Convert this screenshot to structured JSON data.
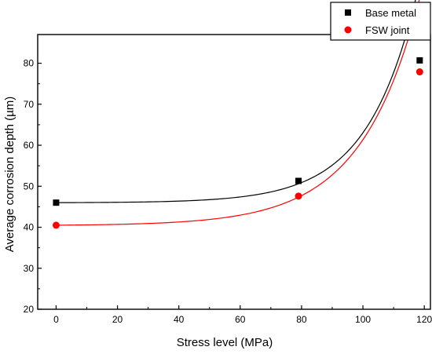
{
  "chart_data": {
    "type": "scatter",
    "xlabel": "Stress level (MPa)",
    "ylabel": "Average corrosion depth (µm)",
    "xlim": [
      -6,
      122
    ],
    "ylim": [
      20,
      87
    ],
    "xticks": [
      0,
      20,
      40,
      60,
      80,
      100,
      120
    ],
    "yticks": [
      20,
      30,
      40,
      50,
      60,
      70,
      80
    ],
    "grid": false,
    "legend_position": "top-right",
    "series": [
      {
        "name": "Base metal",
        "marker": "square",
        "color": "#000000",
        "points": [
          [
            0,
            46.0
          ],
          [
            79,
            51.3
          ],
          [
            118.5,
            80.7
          ]
        ],
        "fit": {
          "type": "exponential",
          "y0": 46.0,
          "a": 0.0343,
          "k": 0.0621,
          "x_range": [
            0,
            118.5
          ]
        }
      },
      {
        "name": "FSW joint",
        "marker": "circle",
        "color": "#ff0000",
        "points": [
          [
            0,
            40.5
          ],
          [
            79,
            47.6
          ],
          [
            118.5,
            77.9
          ]
        ],
        "fit": {
          "type": "exponential",
          "y0": 40.5,
          "a": 0.1093,
          "k": 0.05256,
          "x_range": [
            0,
            118.5
          ]
        }
      }
    ]
  }
}
